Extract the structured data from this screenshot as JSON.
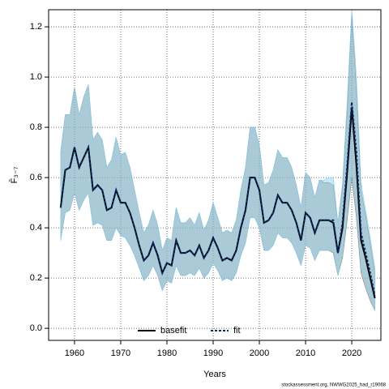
{
  "chart_data": {
    "type": "line",
    "xlabel": "Years",
    "ylabel": "F̄₃₋₇",
    "footer": "stockassessment.org, NWWG2025_had_r19068",
    "x": [
      1957,
      1958,
      1959,
      1960,
      1961,
      1962,
      1963,
      1964,
      1965,
      1966,
      1967,
      1968,
      1969,
      1970,
      1971,
      1972,
      1973,
      1974,
      1975,
      1976,
      1977,
      1978,
      1979,
      1980,
      1981,
      1982,
      1983,
      1984,
      1985,
      1986,
      1987,
      1988,
      1989,
      1990,
      1991,
      1992,
      1993,
      1994,
      1995,
      1996,
      1997,
      1998,
      1999,
      2000,
      2001,
      2002,
      2003,
      2004,
      2005,
      2006,
      2007,
      2008,
      2009,
      2010,
      2011,
      2012,
      2013,
      2014,
      2015,
      2016,
      2017,
      2018,
      2019,
      2020,
      2021,
      2022,
      2023,
      2024,
      2025
    ],
    "series": [
      {
        "name": "basefit",
        "color": "#000000",
        "band_color": "#808080",
        "dashed": false,
        "values": [
          0.48,
          0.63,
          0.64,
          0.72,
          0.64,
          0.68,
          0.72,
          0.55,
          0.57,
          0.55,
          0.47,
          0.48,
          0.55,
          0.5,
          0.5,
          0.46,
          0.4,
          0.33,
          0.27,
          0.29,
          0.34,
          0.29,
          0.22,
          0.26,
          0.25,
          0.35,
          0.3,
          0.3,
          0.31,
          0.29,
          0.33,
          0.28,
          0.31,
          0.36,
          0.32,
          0.27,
          0.28,
          0.27,
          0.31,
          0.4,
          0.47,
          0.6,
          0.6,
          0.55,
          0.42,
          0.43,
          0.46,
          0.53,
          0.5,
          0.5,
          0.47,
          0.42,
          0.35,
          0.46,
          0.44,
          0.38,
          0.43,
          0.43,
          0.43,
          0.42,
          0.3,
          0.4,
          0.62,
          0.88,
          0.65,
          0.35,
          0.28,
          0.2,
          0.12
        ],
        "lower": [
          0.35,
          0.46,
          0.47,
          0.54,
          0.47,
          0.51,
          0.54,
          0.41,
          0.42,
          0.41,
          0.35,
          0.35,
          0.4,
          0.37,
          0.36,
          0.33,
          0.29,
          0.24,
          0.19,
          0.21,
          0.25,
          0.21,
          0.15,
          0.19,
          0.18,
          0.25,
          0.21,
          0.21,
          0.22,
          0.21,
          0.24,
          0.2,
          0.22,
          0.26,
          0.23,
          0.19,
          0.2,
          0.19,
          0.22,
          0.29,
          0.34,
          0.44,
          0.44,
          0.4,
          0.31,
          0.31,
          0.33,
          0.38,
          0.36,
          0.36,
          0.34,
          0.3,
          0.25,
          0.33,
          0.32,
          0.27,
          0.31,
          0.31,
          0.31,
          0.3,
          0.21,
          0.28,
          0.43,
          0.6,
          0.44,
          0.22,
          0.16,
          0.11,
          0.07
        ],
        "upper": [
          0.7,
          0.85,
          0.85,
          0.96,
          0.85,
          0.92,
          0.97,
          0.75,
          0.78,
          0.75,
          0.64,
          0.67,
          0.76,
          0.69,
          0.7,
          0.64,
          0.55,
          0.46,
          0.38,
          0.41,
          0.47,
          0.41,
          0.31,
          0.36,
          0.35,
          0.48,
          0.42,
          0.42,
          0.44,
          0.41,
          0.46,
          0.39,
          0.43,
          0.5,
          0.44,
          0.38,
          0.39,
          0.38,
          0.43,
          0.55,
          0.64,
          0.8,
          0.8,
          0.73,
          0.57,
          0.58,
          0.63,
          0.71,
          0.68,
          0.68,
          0.64,
          0.57,
          0.48,
          0.62,
          0.6,
          0.52,
          0.59,
          0.58,
          0.58,
          0.57,
          0.42,
          0.56,
          0.86,
          1.25,
          0.95,
          0.55,
          0.45,
          0.34,
          0.22
        ]
      },
      {
        "name": "fit",
        "color": "#0a2a66",
        "band_color": "#87ceeb",
        "dashed": true,
        "values": [
          0.48,
          0.63,
          0.64,
          0.72,
          0.64,
          0.68,
          0.72,
          0.55,
          0.57,
          0.55,
          0.47,
          0.48,
          0.55,
          0.5,
          0.5,
          0.46,
          0.4,
          0.33,
          0.27,
          0.29,
          0.34,
          0.29,
          0.22,
          0.26,
          0.25,
          0.35,
          0.3,
          0.3,
          0.31,
          0.29,
          0.33,
          0.28,
          0.31,
          0.36,
          0.32,
          0.27,
          0.28,
          0.27,
          0.31,
          0.4,
          0.47,
          0.6,
          0.6,
          0.55,
          0.42,
          0.43,
          0.46,
          0.53,
          0.5,
          0.5,
          0.47,
          0.42,
          0.35,
          0.46,
          0.44,
          0.38,
          0.43,
          0.43,
          0.43,
          0.43,
          0.3,
          0.42,
          0.65,
          0.9,
          0.7,
          0.38,
          0.3,
          0.22,
          0.13
        ],
        "lower": [
          0.35,
          0.46,
          0.47,
          0.54,
          0.47,
          0.51,
          0.54,
          0.41,
          0.42,
          0.41,
          0.35,
          0.35,
          0.4,
          0.37,
          0.36,
          0.33,
          0.29,
          0.24,
          0.19,
          0.21,
          0.25,
          0.21,
          0.15,
          0.19,
          0.18,
          0.25,
          0.21,
          0.21,
          0.22,
          0.21,
          0.24,
          0.2,
          0.22,
          0.26,
          0.23,
          0.19,
          0.2,
          0.19,
          0.22,
          0.29,
          0.34,
          0.44,
          0.44,
          0.4,
          0.31,
          0.31,
          0.33,
          0.38,
          0.36,
          0.36,
          0.34,
          0.3,
          0.25,
          0.33,
          0.32,
          0.27,
          0.31,
          0.31,
          0.31,
          0.31,
          0.21,
          0.29,
          0.45,
          0.62,
          0.47,
          0.24,
          0.18,
          0.12,
          0.07
        ],
        "upper": [
          0.7,
          0.85,
          0.85,
          0.96,
          0.85,
          0.92,
          0.97,
          0.75,
          0.78,
          0.75,
          0.64,
          0.67,
          0.76,
          0.69,
          0.7,
          0.64,
          0.55,
          0.46,
          0.38,
          0.41,
          0.47,
          0.41,
          0.31,
          0.36,
          0.35,
          0.48,
          0.42,
          0.42,
          0.44,
          0.41,
          0.46,
          0.39,
          0.43,
          0.5,
          0.44,
          0.38,
          0.39,
          0.38,
          0.43,
          0.55,
          0.64,
          0.8,
          0.8,
          0.73,
          0.57,
          0.58,
          0.63,
          0.71,
          0.68,
          0.68,
          0.64,
          0.57,
          0.48,
          0.62,
          0.6,
          0.52,
          0.59,
          0.59,
          0.6,
          0.6,
          0.42,
          0.58,
          0.9,
          1.27,
          1.0,
          0.58,
          0.47,
          0.36,
          0.24
        ]
      }
    ],
    "xlim": [
      1954.4,
      2026.3
    ],
    "xticks": [
      1960,
      1970,
      1980,
      1990,
      2000,
      2010,
      2020
    ],
    "ylim": [
      -0.048,
      1.268
    ],
    "yticks": [
      {
        "value": 0,
        "label": "0.0"
      },
      0.2,
      0.4,
      0.6,
      0.8,
      {
        "value": 1,
        "label": "1.0"
      },
      1.2
    ],
    "grid": true,
    "legend": "bottom"
  }
}
